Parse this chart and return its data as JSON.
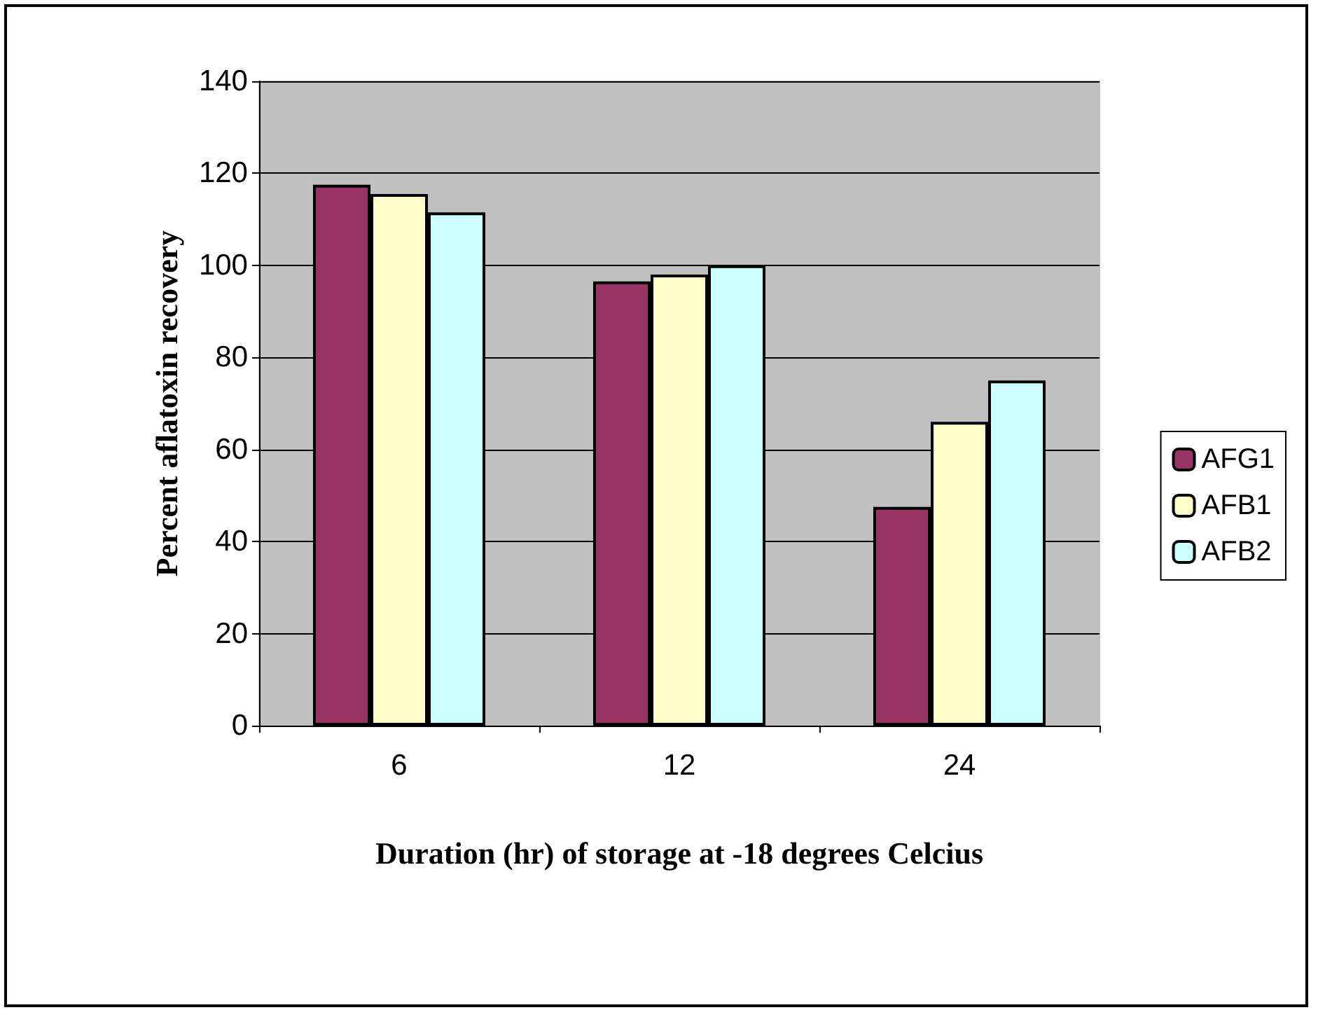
{
  "chart_data": {
    "type": "bar",
    "xlabel": "Duration (hr) of storage at -18 degrees Celcius",
    "ylabel": "Percent aflatoxin recovery",
    "categories": [
      "6",
      "12",
      "24"
    ],
    "series": [
      {
        "name": "AFG1",
        "color": "#993366",
        "values": [
          117.5,
          96.5,
          47.5
        ]
      },
      {
        "name": "AFB1",
        "color": "#ffffcc",
        "values": [
          115.5,
          98,
          66
        ]
      },
      {
        "name": "AFB2",
        "color": "#ccffff",
        "values": [
          111.5,
          100,
          75
        ]
      }
    ],
    "ylim": [
      0,
      140
    ],
    "yticks": [
      0,
      20,
      40,
      60,
      80,
      100,
      120,
      140
    ],
    "grid": "y",
    "legend": "right"
  }
}
